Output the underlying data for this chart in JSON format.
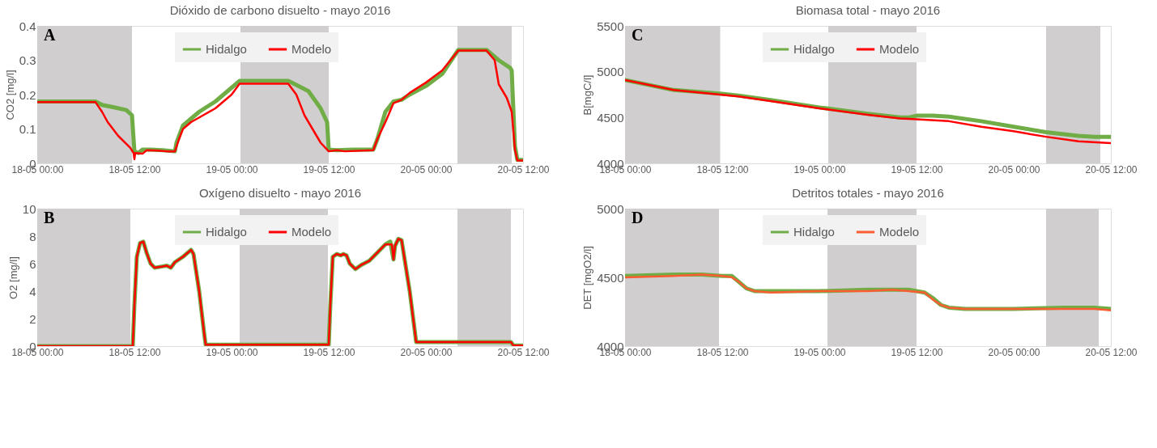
{
  "chart_data": [
    {
      "type": "line",
      "title": "Dióxido de carbono disuelto - mayo 2016",
      "ylabel": "CO2 [mg/l]",
      "annotations": [
        "A"
      ],
      "legend": "top",
      "xlim": [
        "2016-05-18T00:00",
        "2016-05-20T12:00"
      ],
      "xticks": [
        {
          "value": "2016-05-18T00:00",
          "label": "18-05 00:00"
        },
        {
          "value": "2016-05-18T12:00",
          "label": "18-05 12:00"
        },
        {
          "value": "2016-05-19T00:00",
          "label": "19-05 00:00"
        },
        {
          "value": "2016-05-19T12:00",
          "label": "19-05 12:00"
        },
        {
          "value": "2016-05-20T00:00",
          "label": "20-05 00:00"
        },
        {
          "value": "2016-05-20T12:00",
          "label": "20-05 12:00"
        }
      ],
      "ylim": [
        0,
        0.4
      ],
      "yticks": [
        0,
        0.1,
        0.2,
        0.3,
        0.4
      ],
      "bands": [
        {
          "axis": "x",
          "from": "2016-05-18T00:00",
          "to": "2016-05-18T11:42",
          "color": "#d0cece"
        },
        {
          "axis": "x",
          "from": "2016-05-19T01:06",
          "to": "2016-05-19T12:00",
          "color": "#d0cece"
        },
        {
          "axis": "x",
          "from": "2016-05-20T03:54",
          "to": "2016-05-20T10:36",
          "color": "#d0cece"
        }
      ],
      "series": [
        {
          "name": "Hidalgo",
          "color": "#70ad47",
          "x": [
            "2016-05-18T00:00",
            "2016-05-18T07:12",
            "2016-05-18T08:00",
            "2016-05-18T09:30",
            "2016-05-18T11:00",
            "2016-05-18T11:42",
            "2016-05-18T12:00",
            "2016-05-18T12:30",
            "2016-05-18T13:00",
            "2016-05-18T14:00",
            "2016-05-18T15:30",
            "2016-05-18T17:00",
            "2016-05-18T17:12",
            "2016-05-18T18:00",
            "2016-05-18T19:00",
            "2016-05-18T20:00",
            "2016-05-18T22:00",
            "2016-05-19T00:00",
            "2016-05-19T01:00",
            "2016-05-19T07:00",
            "2016-05-19T08:00",
            "2016-05-19T09:30",
            "2016-05-19T11:00",
            "2016-05-19T11:48",
            "2016-05-19T12:00",
            "2016-05-19T13:00",
            "2016-05-19T15:00",
            "2016-05-19T17:00",
            "2016-05-19T17:30",
            "2016-05-19T18:00",
            "2016-05-19T19:00",
            "2016-05-19T20:00",
            "2016-05-19T21:00",
            "2016-05-19T22:00",
            "2016-05-20T00:00",
            "2016-05-20T02:00",
            "2016-05-20T04:00",
            "2016-05-20T07:30",
            "2016-05-20T09:00",
            "2016-05-20T10:24",
            "2016-05-20T10:36",
            "2016-05-20T11:00",
            "2016-05-20T11:18",
            "2016-05-20T12:00"
          ],
          "values": [
            0.18,
            0.18,
            0.17,
            0.163,
            0.155,
            0.14,
            0.035,
            0.03,
            0.04,
            0.04,
            0.038,
            0.035,
            0.06,
            0.11,
            0.13,
            0.15,
            0.18,
            0.22,
            0.24,
            0.24,
            0.228,
            0.21,
            0.16,
            0.12,
            0.04,
            0.038,
            0.04,
            0.04,
            0.04,
            0.07,
            0.15,
            0.18,
            0.185,
            0.2,
            0.225,
            0.26,
            0.33,
            0.33,
            0.3,
            0.278,
            0.27,
            0.05,
            0.01,
            0.01
          ]
        },
        {
          "name": "Modelo",
          "color": "#ff0000",
          "x": [
            "2016-05-18T00:00",
            "2016-05-18T07:12",
            "2016-05-18T08:00",
            "2016-05-18T08:42",
            "2016-05-18T10:00",
            "2016-05-18T11:30",
            "2016-05-18T11:54",
            "2016-05-18T12:00",
            "2016-05-18T12:06",
            "2016-05-18T13:00",
            "2016-05-18T13:30",
            "2016-05-18T15:00",
            "2016-05-18T16:00",
            "2016-05-18T17:00",
            "2016-05-18T17:30",
            "2016-05-18T18:00",
            "2016-05-18T19:00",
            "2016-05-18T22:00",
            "2016-05-19T00:00",
            "2016-05-19T01:00",
            "2016-05-19T07:00",
            "2016-05-19T08:00",
            "2016-05-19T09:00",
            "2016-05-19T10:00",
            "2016-05-19T11:00",
            "2016-05-19T12:00",
            "2016-05-19T13:00",
            "2016-05-19T14:00",
            "2016-05-19T17:30",
            "2016-05-19T18:00",
            "2016-05-19T19:00",
            "2016-05-19T20:00",
            "2016-05-19T21:00",
            "2016-05-19T22:00",
            "2016-05-20T00:00",
            "2016-05-20T02:00",
            "2016-05-20T04:00",
            "2016-05-20T07:30",
            "2016-05-20T08:30",
            "2016-05-20T09:00",
            "2016-05-20T10:00",
            "2016-05-20T10:36",
            "2016-05-20T11:00",
            "2016-05-20T11:18",
            "2016-05-20T12:00"
          ],
          "values": [
            0.178,
            0.178,
            0.15,
            0.12,
            0.08,
            0.045,
            0.03,
            0.012,
            0.03,
            0.028,
            0.038,
            0.037,
            0.035,
            0.035,
            0.07,
            0.1,
            0.12,
            0.16,
            0.2,
            0.232,
            0.232,
            0.2,
            0.14,
            0.1,
            0.06,
            0.035,
            0.038,
            0.035,
            0.038,
            0.07,
            0.12,
            0.175,
            0.185,
            0.205,
            0.235,
            0.27,
            0.328,
            0.328,
            0.3,
            0.23,
            0.19,
            0.15,
            0.04,
            0.008,
            0.008
          ]
        }
      ]
    },
    {
      "type": "line",
      "title": "Biomasa total - mayo 2016",
      "ylabel": "B[mgC/l]",
      "annotations": [
        "C"
      ],
      "legend": "top",
      "xlim": [
        "2016-05-18T00:00",
        "2016-05-20T12:00"
      ],
      "xticks": [
        {
          "value": "2016-05-18T00:00",
          "label": "18-05 00:00"
        },
        {
          "value": "2016-05-18T12:00",
          "label": "18-05 12:00"
        },
        {
          "value": "2016-05-19T00:00",
          "label": "19-05 00:00"
        },
        {
          "value": "2016-05-19T12:00",
          "label": "19-05 12:00"
        },
        {
          "value": "2016-05-20T00:00",
          "label": "20-05 00:00"
        },
        {
          "value": "2016-05-20T12:00",
          "label": "20-05 12:00"
        }
      ],
      "ylim": [
        4000,
        5500
      ],
      "yticks": [
        4000,
        4500,
        5000,
        5500
      ],
      "bands": [
        {
          "axis": "x",
          "from": "2016-05-18T00:00",
          "to": "2016-05-18T11:45",
          "color": "#d0cece"
        },
        {
          "axis": "x",
          "from": "2016-05-19T01:06",
          "to": "2016-05-19T12:00",
          "color": "#d0cece"
        },
        {
          "axis": "x",
          "from": "2016-05-20T04:00",
          "to": "2016-05-20T10:42",
          "color": "#d0cece"
        }
      ],
      "series": [
        {
          "name": "Hidalgo",
          "color": "#70ad47",
          "x": [
            "2016-05-18T00:00",
            "2016-05-18T06:00",
            "2016-05-18T11:45",
            "2016-05-18T14:00",
            "2016-05-18T18:00",
            "2016-05-19T00:00",
            "2016-05-19T06:00",
            "2016-05-19T10:00",
            "2016-05-19T11:00",
            "2016-05-19T12:00",
            "2016-05-19T14:00",
            "2016-05-19T16:00",
            "2016-05-19T20:00",
            "2016-05-20T00:00",
            "2016-05-20T04:00",
            "2016-05-20T08:00",
            "2016-05-20T10:00",
            "2016-05-20T12:00"
          ],
          "values": [
            4910,
            4800,
            4760,
            4740,
            4690,
            4610,
            4540,
            4500,
            4500,
            4520,
            4520,
            4510,
            4460,
            4400,
            4340,
            4300,
            4290,
            4290
          ]
        },
        {
          "name": "Modelo",
          "color": "#ff0000",
          "x": [
            "2016-05-18T00:00",
            "2016-05-18T06:00",
            "2016-05-18T11:45",
            "2016-05-18T14:00",
            "2016-05-18T18:00",
            "2016-05-19T00:00",
            "2016-05-19T06:00",
            "2016-05-19T10:00",
            "2016-05-19T12:00",
            "2016-05-19T16:00",
            "2016-05-19T20:00",
            "2016-05-20T00:00",
            "2016-05-20T04:00",
            "2016-05-20T08:00",
            "2016-05-20T12:00"
          ],
          "values": [
            4910,
            4800,
            4750,
            4730,
            4680,
            4600,
            4530,
            4490,
            4480,
            4460,
            4400,
            4350,
            4290,
            4240,
            4220
          ]
        }
      ]
    },
    {
      "type": "line",
      "title": "Oxígeno disuelto - mayo 2016",
      "ylabel": "O2 [mg/l]",
      "annotations": [
        "B"
      ],
      "legend": "top",
      "xlim": [
        "2016-05-18T00:00",
        "2016-05-20T12:00"
      ],
      "xticks": [
        {
          "value": "2016-05-18T00:00",
          "label": "18-05 00:00"
        },
        {
          "value": "2016-05-18T12:00",
          "label": "18-05 12:00"
        },
        {
          "value": "2016-05-19T00:00",
          "label": "19-05 00:00"
        },
        {
          "value": "2016-05-19T12:00",
          "label": "19-05 12:00"
        },
        {
          "value": "2016-05-20T00:00",
          "label": "20-05 00:00"
        },
        {
          "value": "2016-05-20T12:00",
          "label": "20-05 12:00"
        }
      ],
      "ylim": [
        0,
        10
      ],
      "yticks": [
        0,
        2,
        4,
        6,
        8,
        10
      ],
      "bands": [
        {
          "axis": "x",
          "from": "2016-05-18T00:00",
          "to": "2016-05-18T11:30",
          "color": "#d0cece"
        },
        {
          "axis": "x",
          "from": "2016-05-19T01:00",
          "to": "2016-05-19T11:54",
          "color": "#d0cece"
        },
        {
          "axis": "x",
          "from": "2016-05-20T03:54",
          "to": "2016-05-20T10:30",
          "color": "#d0cece"
        }
      ],
      "series": [
        {
          "name": "Hidalgo",
          "color": "#70ad47",
          "x": [
            "2016-05-18T00:00",
            "2016-05-18T11:48",
            "2016-05-18T12:00",
            "2016-05-18T12:18",
            "2016-05-18T12:42",
            "2016-05-18T13:06",
            "2016-05-18T13:30",
            "2016-05-18T14:00",
            "2016-05-18T14:30",
            "2016-05-18T15:30",
            "2016-05-18T16:00",
            "2016-05-18T16:30",
            "2016-05-18T17:00",
            "2016-05-18T18:00",
            "2016-05-18T18:48",
            "2016-05-18T19:00",
            "2016-05-18T19:18",
            "2016-05-18T20:00",
            "2016-05-18T20:36",
            "2016-05-18T20:48",
            "2016-05-19T12:00",
            "2016-05-19T12:12",
            "2016-05-19T12:30",
            "2016-05-19T13:00",
            "2016-05-19T13:30",
            "2016-05-19T13:48",
            "2016-05-19T14:12",
            "2016-05-19T14:36",
            "2016-05-19T15:18",
            "2016-05-19T16:00",
            "2016-05-19T17:00",
            "2016-05-19T18:00",
            "2016-05-19T19:00",
            "2016-05-19T19:36",
            "2016-05-19T20:00",
            "2016-05-19T20:12",
            "2016-05-19T20:36",
            "2016-05-19T21:00",
            "2016-05-19T22:00",
            "2016-05-19T22:48",
            "2016-05-20T10:30",
            "2016-05-20T10:48",
            "2016-05-20T12:00"
          ],
          "values": [
            0,
            0,
            3,
            6.5,
            7.5,
            7.6,
            6.8,
            6,
            5.7,
            5.8,
            5.85,
            5.7,
            6.1,
            6.5,
            6.9,
            7,
            6.7,
            4,
            1,
            0.1,
            0.1,
            3,
            6.5,
            6.7,
            6.6,
            6.7,
            6.6,
            6,
            5.6,
            5.9,
            6.2,
            6.8,
            7.4,
            7.6,
            6.3,
            7.3,
            7.8,
            7.7,
            4,
            0.3,
            0.3,
            0.05,
            0.05
          ]
        },
        {
          "name": "Modelo",
          "color": "#ff0000",
          "x": [
            "2016-05-18T00:00",
            "2016-05-18T11:48",
            "2016-05-18T12:00",
            "2016-05-18T12:18",
            "2016-05-18T12:42",
            "2016-05-18T13:06",
            "2016-05-18T13:30",
            "2016-05-18T14:00",
            "2016-05-18T14:30",
            "2016-05-18T15:30",
            "2016-05-18T16:00",
            "2016-05-18T16:30",
            "2016-05-18T17:00",
            "2016-05-18T18:00",
            "2016-05-18T18:48",
            "2016-05-18T19:00",
            "2016-05-18T19:18",
            "2016-05-18T20:00",
            "2016-05-18T20:36",
            "2016-05-18T20:48",
            "2016-05-19T12:00",
            "2016-05-19T12:12",
            "2016-05-19T12:30",
            "2016-05-19T13:00",
            "2016-05-19T13:30",
            "2016-05-19T13:48",
            "2016-05-19T14:12",
            "2016-05-19T14:36",
            "2016-05-19T15:18",
            "2016-05-19T16:00",
            "2016-05-19T17:00",
            "2016-05-19T18:00",
            "2016-05-19T19:00",
            "2016-05-19T19:48",
            "2016-05-19T20:00",
            "2016-05-19T20:12",
            "2016-05-19T20:36",
            "2016-05-19T21:00",
            "2016-05-19T22:00",
            "2016-05-19T22:48",
            "2016-05-20T10:30",
            "2016-05-20T10:48",
            "2016-05-20T12:00"
          ],
          "values": [
            0,
            0,
            3,
            6.5,
            7.5,
            7.6,
            6.8,
            6,
            5.7,
            5.8,
            5.85,
            5.7,
            6.1,
            6.5,
            6.9,
            7,
            6.7,
            4,
            1,
            0.1,
            0.1,
            3,
            6.5,
            6.7,
            6.6,
            6.7,
            6.6,
            6,
            5.6,
            5.9,
            6.2,
            6.8,
            7.4,
            7.4,
            6.3,
            7.3,
            7.8,
            7.7,
            4,
            0.3,
            0.3,
            0.05,
            0.05
          ]
        }
      ]
    },
    {
      "type": "line",
      "title": "Detritos totales - mayo 2016",
      "ylabel": "DET [mgO2/l]",
      "annotations": [
        "D"
      ],
      "legend": "top",
      "xlim": [
        "2016-05-18T00:00",
        "2016-05-20T12:00"
      ],
      "xticks": [
        {
          "value": "2016-05-18T00:00",
          "label": "18-05 00:00"
        },
        {
          "value": "2016-05-18T12:00",
          "label": "18-05 12:00"
        },
        {
          "value": "2016-05-19T00:00",
          "label": "19-05 00:00"
        },
        {
          "value": "2016-05-19T12:00",
          "label": "19-05 12:00"
        },
        {
          "value": "2016-05-20T00:00",
          "label": "20-05 00:00"
        },
        {
          "value": "2016-05-20T12:00",
          "label": "20-05 12:00"
        }
      ],
      "ylim": [
        4000,
        5000
      ],
      "yticks": [
        4000,
        4500,
        5000
      ],
      "bands": [
        {
          "axis": "x",
          "from": "2016-05-18T00:00",
          "to": "2016-05-18T11:36",
          "color": "#d0cece"
        },
        {
          "axis": "x",
          "from": "2016-05-19T01:00",
          "to": "2016-05-19T12:00",
          "color": "#d0cece"
        },
        {
          "axis": "x",
          "from": "2016-05-20T04:00",
          "to": "2016-05-20T10:30",
          "color": "#d0cece"
        }
      ],
      "series": [
        {
          "name": "Hidalgo",
          "color": "#70ad47",
          "x": [
            "2016-05-18T00:00",
            "2016-05-18T06:00",
            "2016-05-18T09:30",
            "2016-05-18T12:00",
            "2016-05-18T13:12",
            "2016-05-18T14:00",
            "2016-05-18T15:00",
            "2016-05-18T16:00",
            "2016-05-18T18:00",
            "2016-05-19T00:00",
            "2016-05-19T06:00",
            "2016-05-19T09:00",
            "2016-05-19T11:00",
            "2016-05-19T13:00",
            "2016-05-19T14:00",
            "2016-05-19T15:00",
            "2016-05-19T16:00",
            "2016-05-19T18:00",
            "2016-05-20T00:00",
            "2016-05-20T06:00",
            "2016-05-20T10:00",
            "2016-05-20T12:00"
          ],
          "values": [
            4510,
            4520,
            4520,
            4510,
            4510,
            4470,
            4420,
            4400,
            4400,
            4400,
            4410,
            4410,
            4410,
            4390,
            4350,
            4300,
            4280,
            4270,
            4270,
            4280,
            4280,
            4270
          ]
        },
        {
          "name": "Modelo",
          "color": "#fb5c32",
          "x": [
            "2016-05-18T00:00",
            "2016-05-18T06:00",
            "2016-05-18T09:30",
            "2016-05-18T12:00",
            "2016-05-18T13:12",
            "2016-05-18T14:00",
            "2016-05-18T15:00",
            "2016-05-18T16:00",
            "2016-05-18T18:00",
            "2016-05-19T00:00",
            "2016-05-19T06:00",
            "2016-05-19T09:00",
            "2016-05-19T11:00",
            "2016-05-19T13:00",
            "2016-05-19T14:00",
            "2016-05-19T15:00",
            "2016-05-19T16:00",
            "2016-05-19T18:00",
            "2016-05-20T00:00",
            "2016-05-20T06:00",
            "2016-05-20T10:00",
            "2016-05-20T12:00"
          ],
          "values": [
            4500,
            4510,
            4520,
            4510,
            4500,
            4470,
            4420,
            4400,
            4390,
            4400,
            4400,
            4410,
            4400,
            4390,
            4340,
            4300,
            4280,
            4270,
            4270,
            4270,
            4270,
            4260
          ]
        }
      ]
    }
  ]
}
